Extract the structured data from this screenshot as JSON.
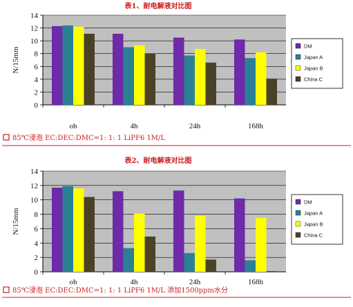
{
  "colors": {
    "plot_background": "#c0c0c0",
    "title_text": "#cc1d1d",
    "caption_text": "#cc1d1d",
    "caption_line": "#cc1d1d"
  },
  "chart_data": [
    {
      "type": "bar",
      "title": "表1、耐电解液对比图",
      "ylabel": "N/15mm",
      "xlabel": "",
      "ylim": [
        0,
        14
      ],
      "yticks": [
        0,
        2,
        4,
        6,
        8,
        10,
        12,
        14
      ],
      "grid": "horizontal",
      "legend_position": "right",
      "categories": [
        "oh",
        "4h",
        "24h",
        "168h"
      ],
      "series": [
        {
          "name": "DM",
          "color": "#6e2aa8",
          "values": [
            12.3,
            11.1,
            10.5,
            10.2
          ]
        },
        {
          "name": "Japan A",
          "color": "#2a8195",
          "values": [
            12.4,
            9.0,
            7.7,
            7.3
          ]
        },
        {
          "name": "Japan B",
          "color": "#ffff00",
          "values": [
            12.2,
            9.3,
            8.7,
            8.2
          ]
        },
        {
          "name": "China C",
          "color": "#4a4228",
          "values": [
            11.1,
            8.0,
            6.6,
            4.1
          ]
        }
      ],
      "caption": "85℃浸泡 EC:DEC:DMC=1: 1: 1 LiPF6 1M/L"
    },
    {
      "type": "bar",
      "title": "表2、耐电解液对比图",
      "ylabel": "N/15mm",
      "xlabel": "",
      "ylim": [
        0,
        14
      ],
      "yticks": [
        0,
        2,
        4,
        6,
        8,
        10,
        12,
        14
      ],
      "grid": "horizontal",
      "legend_position": "right",
      "categories": [
        "oh",
        "4h",
        "24h",
        "168h"
      ],
      "series": [
        {
          "name": "DM",
          "color": "#6e2aa8",
          "values": [
            11.7,
            11.2,
            11.3,
            10.2
          ]
        },
        {
          "name": "Japan A",
          "color": "#2a8195",
          "values": [
            11.9,
            3.3,
            2.6,
            1.6
          ]
        },
        {
          "name": "Japan B",
          "color": "#ffff00",
          "values": [
            11.6,
            8.1,
            7.8,
            7.5
          ]
        },
        {
          "name": "China C",
          "color": "#4a4228",
          "values": [
            10.4,
            4.9,
            1.7,
            0.1
          ]
        }
      ],
      "caption": "85℃浸泡 EC:DEC:DMC=1: 1: 1 LiPF6 1M/L 添加1500ppm水分"
    }
  ]
}
